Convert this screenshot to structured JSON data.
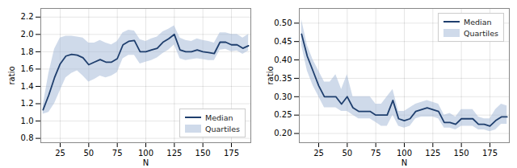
{
  "chart_data": [
    {
      "type": "line",
      "x": [
        10,
        15,
        20,
        25,
        30,
        35,
        40,
        45,
        50,
        55,
        60,
        65,
        70,
        75,
        80,
        85,
        90,
        95,
        100,
        105,
        110,
        115,
        120,
        125,
        130,
        135,
        140,
        145,
        150,
        155,
        160,
        165,
        170,
        175,
        180,
        185,
        190
      ],
      "series": [
        {
          "name": "Median",
          "type": "line",
          "color": "#1f3f6e",
          "values": [
            1.13,
            1.3,
            1.5,
            1.66,
            1.75,
            1.77,
            1.76,
            1.73,
            1.65,
            1.68,
            1.71,
            1.68,
            1.68,
            1.72,
            1.88,
            1.92,
            1.93,
            1.8,
            1.8,
            1.82,
            1.84,
            1.91,
            1.95,
            2.0,
            1.82,
            1.8,
            1.8,
            1.82,
            1.8,
            1.79,
            1.78,
            1.91,
            1.91,
            1.88,
            1.88,
            1.84,
            1.87
          ]
        },
        {
          "name": "Quartiles",
          "type": "band",
          "color": "#a8bcd8",
          "low": [
            1.08,
            1.1,
            1.2,
            1.35,
            1.5,
            1.55,
            1.58,
            1.52,
            1.45,
            1.48,
            1.52,
            1.5,
            1.52,
            1.56,
            1.72,
            1.76,
            1.76,
            1.66,
            1.68,
            1.7,
            1.73,
            1.78,
            1.82,
            1.88,
            1.72,
            1.7,
            1.71,
            1.72,
            1.71,
            1.7,
            1.7,
            1.82,
            1.83,
            1.8,
            1.81,
            1.77,
            1.81
          ],
          "high": [
            1.18,
            1.55,
            1.83,
            1.96,
            1.98,
            1.98,
            1.97,
            1.96,
            1.9,
            1.9,
            1.93,
            1.9,
            1.88,
            1.92,
            2.02,
            2.05,
            2.04,
            1.94,
            1.92,
            1.95,
            1.97,
            2.03,
            2.06,
            2.1,
            1.96,
            1.93,
            1.92,
            1.95,
            1.93,
            1.92,
            1.9,
            2.02,
            2.02,
            2.0,
            2.0,
            1.96,
            2.0
          ]
        }
      ],
      "xlabel": "N",
      "ylabel": "ratio",
      "xlim": [
        8,
        192
      ],
      "xticks": [
        25,
        50,
        75,
        100,
        125,
        150,
        175
      ],
      "ylim": [
        0.75,
        2.3
      ],
      "yticks": [
        0.8,
        {
          "value": 1.0,
          "label": "1.0"
        },
        1.2,
        1.4,
        1.6,
        1.8,
        {
          "value": 2.0,
          "label": "2.0"
        },
        2.2
      ],
      "grid": true,
      "legend": "lower right"
    },
    {
      "type": "line",
      "x": [
        10,
        15,
        20,
        25,
        30,
        35,
        40,
        45,
        50,
        55,
        60,
        65,
        70,
        75,
        80,
        85,
        90,
        95,
        100,
        105,
        110,
        115,
        120,
        125,
        130,
        135,
        140,
        145,
        150,
        155,
        160,
        165,
        170,
        175,
        180,
        185,
        190
      ],
      "series": [
        {
          "name": "Median",
          "type": "line",
          "color": "#1f3f6e",
          "values": [
            0.47,
            0.41,
            0.37,
            0.33,
            0.3,
            0.3,
            0.3,
            0.28,
            0.3,
            0.27,
            0.26,
            0.26,
            0.26,
            0.25,
            0.25,
            0.25,
            0.29,
            0.24,
            0.235,
            0.24,
            0.26,
            0.265,
            0.27,
            0.265,
            0.26,
            0.23,
            0.23,
            0.225,
            0.24,
            0.24,
            0.24,
            0.225,
            0.225,
            0.22,
            0.235,
            0.245,
            0.245
          ]
        },
        {
          "name": "Quartiles",
          "type": "band",
          "color": "#a8bcd8",
          "low": [
            0.44,
            0.37,
            0.33,
            0.3,
            0.27,
            0.27,
            0.27,
            0.26,
            0.26,
            0.25,
            0.24,
            0.24,
            0.24,
            0.23,
            0.22,
            0.22,
            0.25,
            0.22,
            0.215,
            0.22,
            0.24,
            0.245,
            0.245,
            0.245,
            0.24,
            0.215,
            0.215,
            0.21,
            0.22,
            0.22,
            0.22,
            0.21,
            0.21,
            0.205,
            0.21,
            0.225,
            0.225
          ],
          "high": [
            0.51,
            0.44,
            0.4,
            0.37,
            0.34,
            0.34,
            0.36,
            0.32,
            0.36,
            0.3,
            0.3,
            0.3,
            0.3,
            0.28,
            0.28,
            0.3,
            0.32,
            0.26,
            0.26,
            0.27,
            0.28,
            0.285,
            0.29,
            0.285,
            0.28,
            0.25,
            0.255,
            0.245,
            0.265,
            0.265,
            0.265,
            0.245,
            0.24,
            0.24,
            0.265,
            0.28,
            0.275
          ]
        }
      ],
      "xlabel": "N",
      "ylabel": "ratio",
      "xlim": [
        8,
        192
      ],
      "xticks": [
        25,
        50,
        75,
        100,
        125,
        150,
        175
      ],
      "ylim": [
        0.175,
        0.54
      ],
      "yticks": [
        {
          "value": 0.2,
          "label": "0.20"
        },
        0.25,
        {
          "value": 0.3,
          "label": "0.30"
        },
        0.35,
        {
          "value": 0.4,
          "label": "0.40"
        },
        0.45,
        {
          "value": 0.5,
          "label": "0.50"
        }
      ],
      "grid": true,
      "legend": "upper right"
    }
  ]
}
